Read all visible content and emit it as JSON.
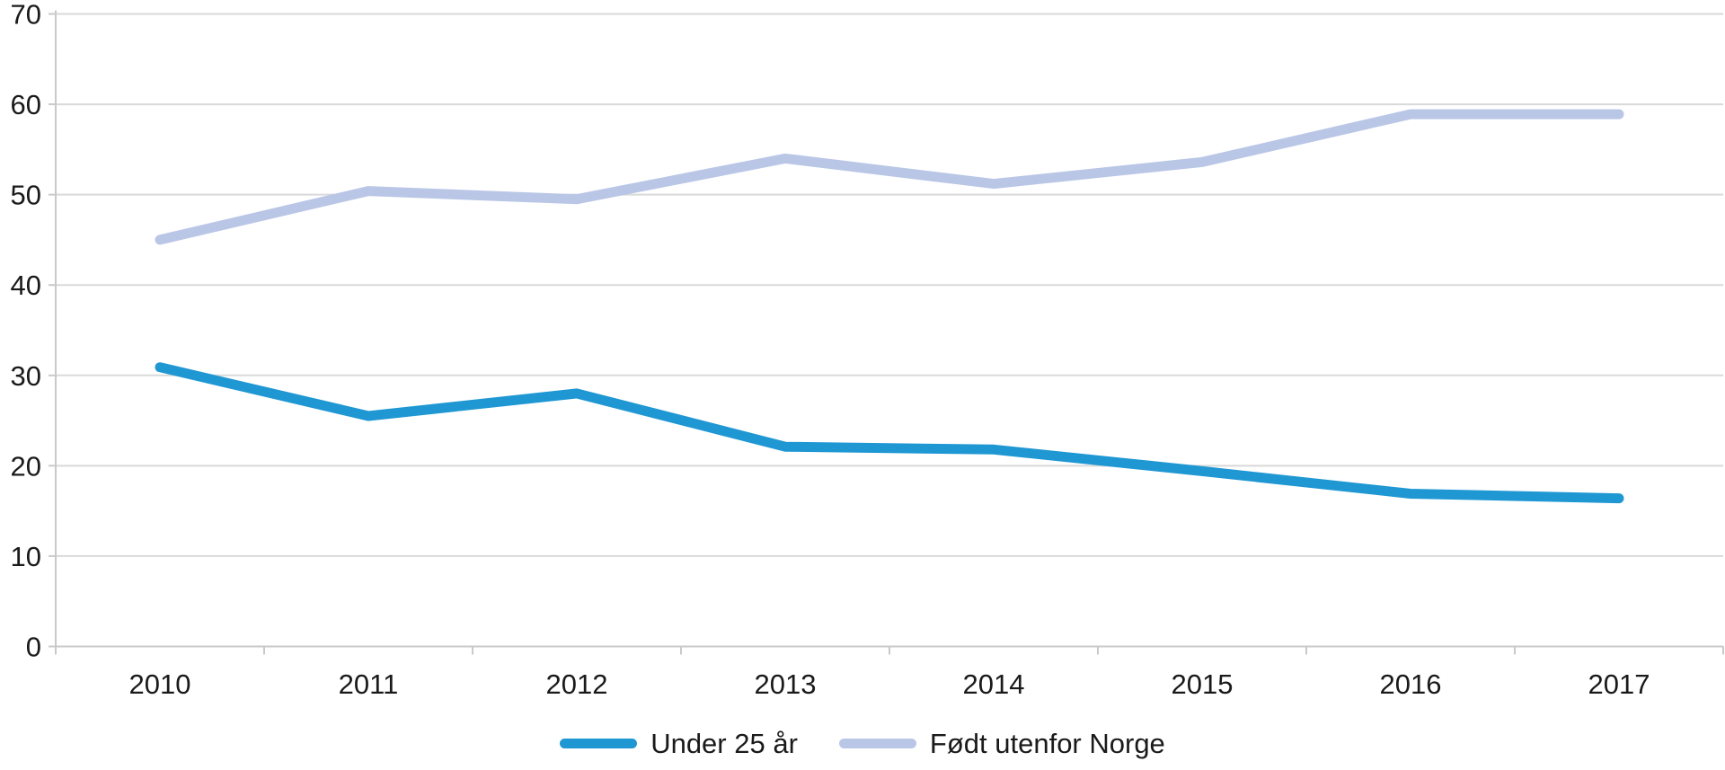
{
  "chart_data": {
    "type": "line",
    "categories": [
      "2010",
      "2011",
      "2012",
      "2013",
      "2014",
      "2015",
      "2016",
      "2017"
    ],
    "series": [
      {
        "name": "Under 25 år",
        "color": "#1f97d3",
        "values": [
          30.9,
          25.5,
          28.0,
          22.1,
          21.8,
          19.4,
          16.9,
          16.4
        ]
      },
      {
        "name": "Født utenfor Norge",
        "color": "#b9c6e6",
        "values": [
          45.0,
          50.4,
          49.5,
          54.0,
          51.2,
          53.6,
          58.9,
          58.9
        ]
      }
    ],
    "title": "",
    "xlabel": "",
    "ylabel": "",
    "ylim": [
      0,
      70
    ],
    "ytick_interval": 10,
    "ytick_labels": [
      "0",
      "10",
      "20",
      "30",
      "40",
      "50",
      "60",
      "70"
    ],
    "grid": true,
    "legend_position": "bottom-center"
  },
  "style": {
    "grid_color": "#d9d9d9",
    "axis_color": "#c9c9c9",
    "text_color": "#1a1a1a"
  }
}
